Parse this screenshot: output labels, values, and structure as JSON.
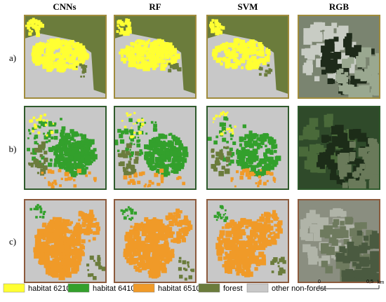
{
  "columns": [
    "CNNs",
    "RF",
    "SVM",
    "RGB"
  ],
  "rows": [
    "a)",
    "b)",
    "c)"
  ],
  "legend": [
    {
      "label": "habitat 6210",
      "color": "#ffff33"
    },
    {
      "label": "habitat 6410",
      "color": "#33a02c"
    },
    {
      "label": "habitat 6510",
      "color": "#f09a28"
    },
    {
      "label": "forest",
      "color": "#6b7c3c"
    },
    {
      "label": "other non-forest",
      "color": "#c8c8c8"
    }
  ],
  "scale_bar": {
    "start": "0",
    "end": "0,5",
    "unit": "km"
  }
}
